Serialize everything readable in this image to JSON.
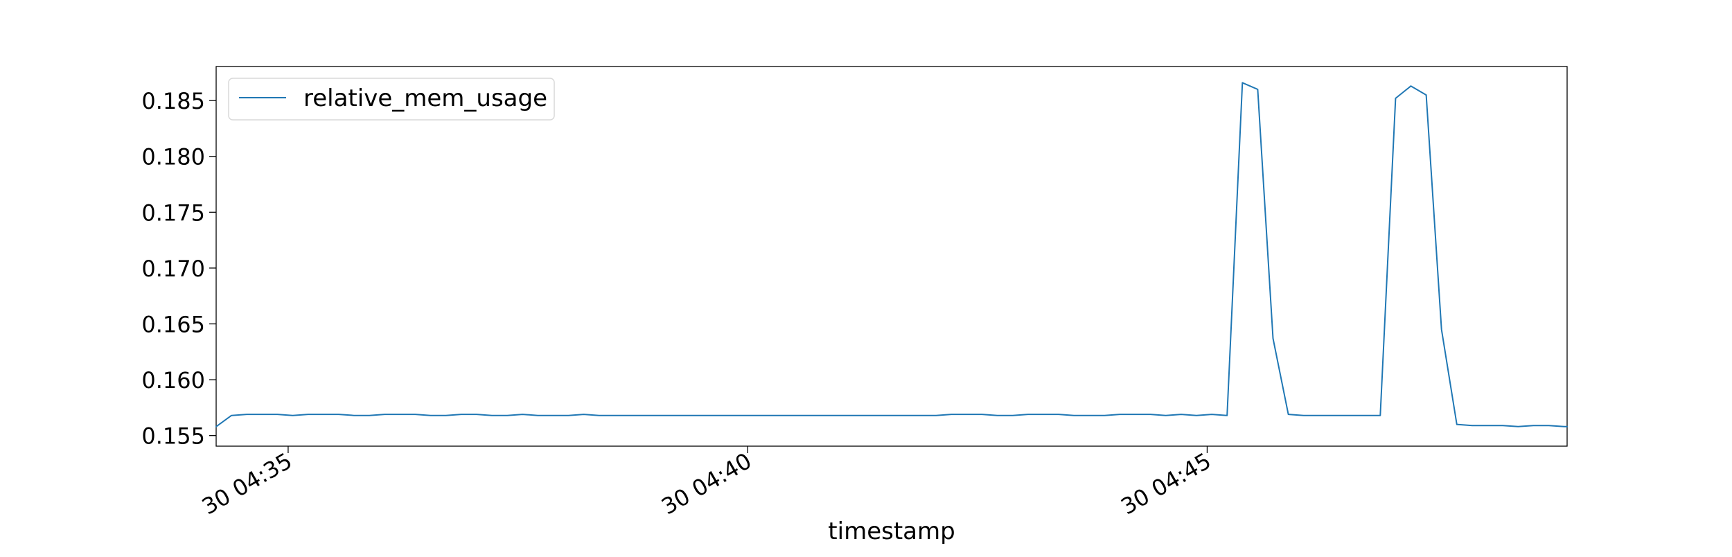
{
  "chart_data": {
    "type": "line",
    "title": "",
    "xlabel": "timestamp",
    "ylabel": "",
    "x_axis_type": "datetime",
    "x_range": [
      "04:34:13",
      "04:48:55"
    ],
    "ylim": [
      0.15405,
      0.18805
    ],
    "x_tick_values": [
      "04:35:00",
      "04:40:00",
      "04:45:00"
    ],
    "x_tick_labels": [
      "30 04:35",
      "30 04:40",
      "30 04:45"
    ],
    "y_ticks": [
      0.155,
      0.16,
      0.165,
      0.17,
      0.175,
      0.18,
      0.185
    ],
    "y_tick_labels": [
      "0.155",
      "0.160",
      "0.165",
      "0.170",
      "0.175",
      "0.180",
      "0.185"
    ],
    "grid": false,
    "legend": {
      "position": "upper-left"
    },
    "series": [
      {
        "name": "relative_mem_usage",
        "color": "#1f77b4",
        "x": [
          "04:34:13",
          "04:34:23",
          "04:34:33",
          "04:34:43",
          "04:34:53",
          "04:35:03",
          "04:35:13",
          "04:35:23",
          "04:35:33",
          "04:35:43",
          "04:35:53",
          "04:36:03",
          "04:36:13",
          "04:36:23",
          "04:36:33",
          "04:36:43",
          "04:36:53",
          "04:37:03",
          "04:37:13",
          "04:37:23",
          "04:37:33",
          "04:37:43",
          "04:37:53",
          "04:38:03",
          "04:38:13",
          "04:38:23",
          "04:38:33",
          "04:38:43",
          "04:38:53",
          "04:39:03",
          "04:39:13",
          "04:39:23",
          "04:39:33",
          "04:39:43",
          "04:39:53",
          "04:40:03",
          "04:40:13",
          "04:40:23",
          "04:40:33",
          "04:40:43",
          "04:40:53",
          "04:41:03",
          "04:41:13",
          "04:41:23",
          "04:41:33",
          "04:41:43",
          "04:41:53",
          "04:42:03",
          "04:42:13",
          "04:42:23",
          "04:42:33",
          "04:42:43",
          "04:42:53",
          "04:43:03",
          "04:43:13",
          "04:43:23",
          "04:43:33",
          "04:43:43",
          "04:43:53",
          "04:44:03",
          "04:44:13",
          "04:44:23",
          "04:44:33",
          "04:44:43",
          "04:44:53",
          "04:45:03",
          "04:45:13",
          "04:45:23",
          "04:45:33",
          "04:45:43",
          "04:45:53",
          "04:46:03",
          "04:46:13",
          "04:46:23",
          "04:46:33",
          "04:46:43",
          "04:46:53",
          "04:47:03",
          "04:47:13",
          "04:47:23",
          "04:47:33",
          "04:47:43",
          "04:47:53",
          "04:48:03",
          "04:48:13",
          "04:48:23",
          "04:48:33",
          "04:48:43",
          "04:48:53"
        ],
        "values": [
          0.1558,
          0.1568,
          0.1569,
          0.1569,
          0.1569,
          0.1568,
          0.1569,
          0.1569,
          0.1569,
          0.1568,
          0.1568,
          0.1569,
          0.1569,
          0.1569,
          0.1568,
          0.1568,
          0.1569,
          0.1569,
          0.1568,
          0.1568,
          0.1569,
          0.1568,
          0.1568,
          0.1568,
          0.1569,
          0.1568,
          0.1568,
          0.1568,
          0.1568,
          0.1568,
          0.1568,
          0.1568,
          0.1568,
          0.1568,
          0.1568,
          0.1568,
          0.1568,
          0.1568,
          0.1568,
          0.1568,
          0.1568,
          0.1568,
          0.1568,
          0.1568,
          0.1568,
          0.1568,
          0.1568,
          0.1568,
          0.1569,
          0.1569,
          0.1569,
          0.1568,
          0.1568,
          0.1569,
          0.1569,
          0.1569,
          0.1568,
          0.1568,
          0.1568,
          0.1569,
          0.1569,
          0.1569,
          0.1568,
          0.1569,
          0.1568,
          0.1569,
          0.1568,
          0.1866,
          0.186,
          0.1637,
          0.1569,
          0.1568,
          0.1568,
          0.1568,
          0.1568,
          0.1568,
          0.1568,
          0.1852,
          0.1863,
          0.1855,
          0.1645,
          0.156,
          0.1559,
          0.1559,
          0.1559,
          0.1558,
          0.1559,
          0.1559,
          0.1558
        ]
      }
    ]
  }
}
